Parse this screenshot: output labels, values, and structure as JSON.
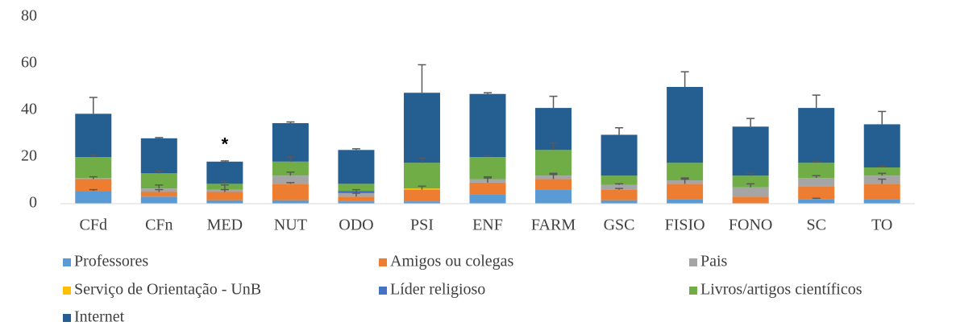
{
  "chart_data": {
    "type": "bar",
    "stacked": true,
    "grid": false,
    "categories": [
      "CFd",
      "CFn",
      "MED",
      "NUT",
      "ODO",
      "PSI",
      "ENF",
      "FARM",
      "GSC",
      "FISIO",
      "FONO",
      "SC",
      "TO"
    ],
    "ylim": [
      0,
      80
    ],
    "yticks": [
      0,
      20,
      40,
      60,
      80
    ],
    "annotations": [
      {
        "text": "*",
        "x": "MED"
      }
    ],
    "series": [
      {
        "name": "Professores",
        "color": "#5b9bd5",
        "values": [
          5.5,
          3,
          1.5,
          1.5,
          1,
          1,
          4,
          6,
          1.5,
          2,
          0,
          2,
          2
        ],
        "errors": [
          0.5,
          null,
          null,
          null,
          null,
          null,
          null,
          null,
          null,
          null,
          null,
          0.3,
          null
        ]
      },
      {
        "name": "Amigos ou colegas",
        "color": "#ed7d31",
        "values": [
          5,
          2,
          3.5,
          7,
          2,
          5,
          5,
          4.5,
          4.5,
          6.5,
          3,
          5.5,
          6.5
        ],
        "errors": [
          1,
          1,
          1,
          0.5,
          1.5,
          1.5,
          2,
          2,
          0.5,
          2,
          null,
          null,
          2
        ]
      },
      {
        "name": "Pais",
        "color": "#a5a5a5",
        "values": [
          0.5,
          1.5,
          1,
          3.5,
          1.5,
          0,
          1.5,
          1.5,
          2,
          1.5,
          4,
          3.5,
          3.5
        ],
        "errors": [
          null,
          1.5,
          2,
          1.5,
          1.5,
          null,
          1,
          1,
          0.5,
          1,
          1.5,
          1,
          1
        ]
      },
      {
        "name": "Serviço de Orientação - UnB",
        "color": "#ffc000",
        "values": [
          0,
          0,
          0,
          0,
          0,
          0.5,
          0,
          0,
          0,
          0,
          0,
          0,
          0
        ],
        "errors": [
          null,
          null,
          null,
          null,
          null,
          null,
          null,
          null,
          null,
          null,
          null,
          null,
          null
        ]
      },
      {
        "name": "Líder religioso",
        "color": "#4472c4",
        "values": [
          0,
          0,
          0,
          0,
          1,
          0,
          0,
          0,
          0,
          0,
          0,
          0,
          0
        ],
        "errors": [
          null,
          null,
          null,
          null,
          null,
          null,
          null,
          null,
          null,
          null,
          null,
          null,
          null
        ]
      },
      {
        "name": "Livros/artigos científicos",
        "color": "#70ad47",
        "values": [
          9,
          6.5,
          2.5,
          6,
          3,
          11,
          9.5,
          11,
          4,
          7.5,
          5,
          6.5,
          3.5
        ],
        "errors": [
          1,
          1,
          1,
          2,
          null,
          2,
          0.5,
          3,
          null,
          null,
          1,
          0.5,
          0.5
        ]
      },
      {
        "name": "Internet",
        "color": "#255e91",
        "values": [
          18.5,
          15,
          9.5,
          16.5,
          14.5,
          30,
          27,
          18,
          17.5,
          32.5,
          21,
          23.5,
          18.5
        ],
        "errors": [
          7,
          0.3,
          0.3,
          0.5,
          0.5,
          12,
          0.5,
          5,
          3,
          6.5,
          3.5,
          5.5,
          5.5
        ]
      }
    ]
  }
}
